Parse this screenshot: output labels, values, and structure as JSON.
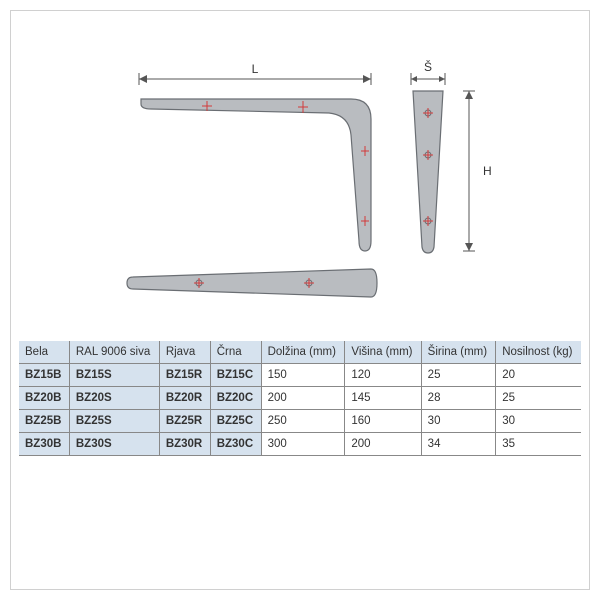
{
  "diagram": {
    "labels": {
      "L": "L",
      "S": "Š",
      "H": "H"
    },
    "fill": "#b9bcc0",
    "stroke": "#6a6e73",
    "dim_line": "#555555",
    "cross": "#d23a3a",
    "bg": "#ffffff"
  },
  "table": {
    "headers": [
      "Bela",
      "RAL 9006 siva",
      "Rjava",
      "Črna",
      "Dolžina (mm)",
      "Višina (mm)",
      "Širina (mm)",
      "Nosilnost (kg)"
    ],
    "rows": [
      [
        "BZ15B",
        "BZ15S",
        "BZ15R",
        "BZ15C",
        "150",
        "120",
        "25",
        "20"
      ],
      [
        "BZ20B",
        "BZ20S",
        "BZ20R",
        "BZ20C",
        "200",
        "145",
        "28",
        "25"
      ],
      [
        "BZ25B",
        "BZ25S",
        "BZ25R",
        "BZ25C",
        "250",
        "160",
        "30",
        "30"
      ],
      [
        "BZ30B",
        "BZ30S",
        "BZ30R",
        "BZ30C",
        "300",
        "200",
        "34",
        "35"
      ]
    ],
    "code_cols": 4,
    "header_bg": "#d6e2ee",
    "border": "#888888",
    "fontsize": 11.5
  }
}
